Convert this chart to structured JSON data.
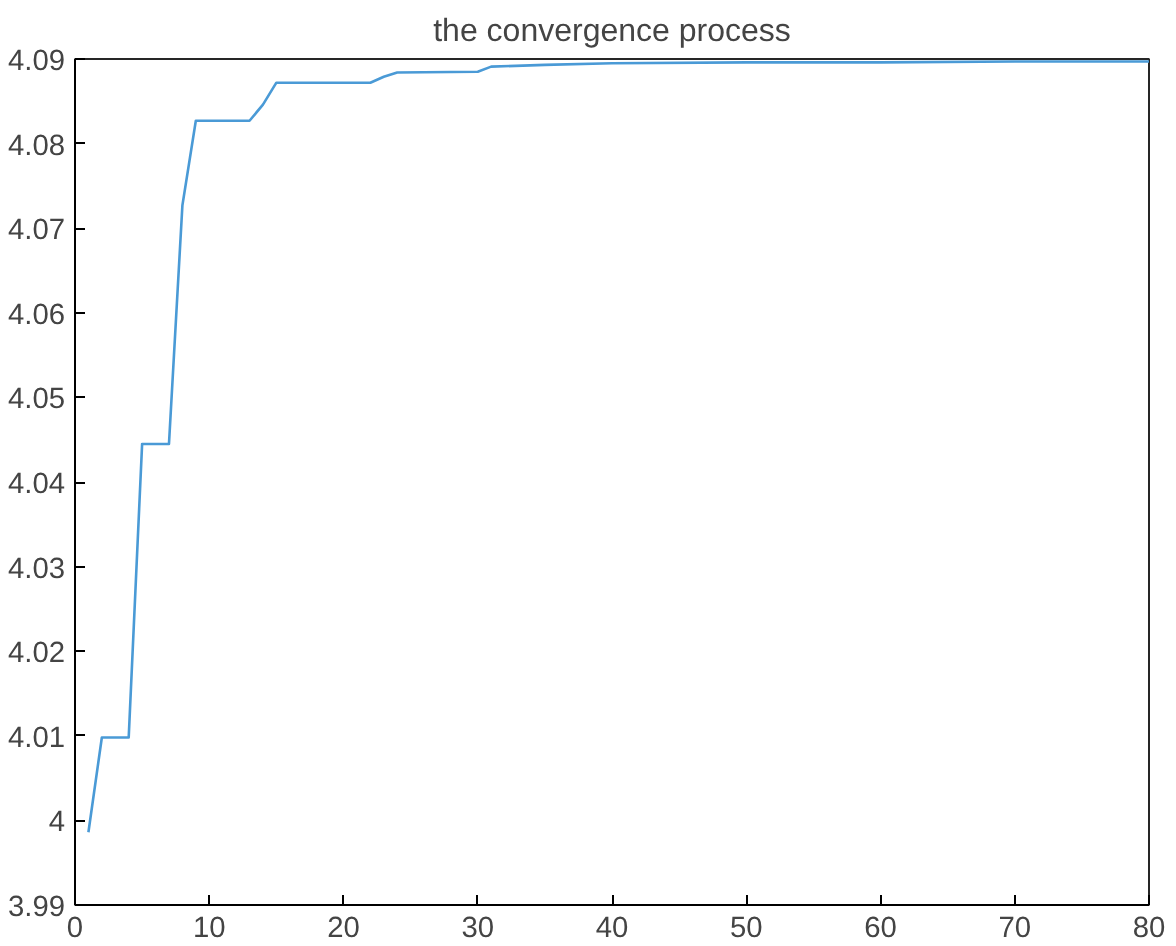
{
  "chart_data": {
    "type": "line",
    "title": "the convergence process",
    "x": [
      1,
      2,
      4,
      5,
      7,
      8,
      9,
      13,
      14,
      15,
      22,
      23,
      24,
      30,
      31,
      35,
      40,
      50,
      60,
      70,
      80
    ],
    "series": [
      {
        "color": "#4a9ad6",
        "values": [
          3.9986,
          4.0098,
          4.0098,
          4.0445,
          4.0445,
          4.0727,
          4.0827,
          4.0827,
          4.0846,
          4.0872,
          4.0872,
          4.0879,
          4.0884,
          4.0885,
          4.0891,
          4.0893,
          4.0895,
          4.0896,
          4.0896,
          4.0897,
          4.0897
        ]
      }
    ],
    "xlim": [
      0,
      80
    ],
    "xticks": [
      0,
      10,
      20,
      30,
      40,
      50,
      60,
      70,
      80
    ],
    "ylim": [
      3.99,
      4.09
    ],
    "yticks": [
      3.99,
      {
        "value": 4.0,
        "label": "4"
      },
      4.01,
      4.02,
      4.03,
      4.04,
      4.05,
      4.06,
      4.07,
      4.08,
      4.09
    ],
    "grid": false,
    "marker": "none",
    "line_style": "solid"
  }
}
